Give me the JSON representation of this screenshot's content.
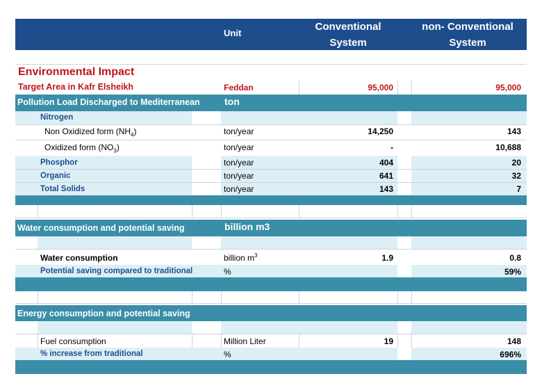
{
  "header": {
    "unit": "Unit",
    "conventional_line1": "Conventional",
    "conventional_line2": "System",
    "nonconventional_line1": "non- Conventional",
    "nonconventional_line2": "System"
  },
  "environmental": {
    "title": "Environmental Impact",
    "target_label": "Target Area  in Kafr Elsheikh",
    "target_unit": "Feddan",
    "target_conv": "95,000",
    "target_nonconv": "95,000"
  },
  "pollution": {
    "title": "Pollution Load Discharged to Mediterranean",
    "unit": "ton",
    "nitrogen_label": "Nitrogen",
    "rows": [
      {
        "label": "Non Oxidized form (NH",
        "sub": "4",
        "close": ")",
        "unit": "ton/year",
        "conv": "14,250",
        "nonconv": "143"
      },
      {
        "label": "Oxidized form (NO",
        "sub": "3",
        "close": ")",
        "unit": "ton/year",
        "conv": "-",
        "nonconv": "10,688"
      },
      {
        "label": "Phosphor",
        "unit": "ton/year",
        "conv": "404",
        "nonconv": "20"
      },
      {
        "label": "Organic",
        "unit": "ton/year",
        "conv": "641",
        "nonconv": "32"
      },
      {
        "label": "Total Solids",
        "unit": "ton/year",
        "conv": "143",
        "nonconv": "7"
      }
    ]
  },
  "water": {
    "title": "Water consumption and potential saving",
    "unit": "billion m3",
    "consumption_label": "Water consumption",
    "consumption_unit": "billion m",
    "consumption_unit_sup": "3",
    "consumption_conv": "1.9",
    "consumption_nonconv": "0.8",
    "saving_label": "Potential saving compared to traditional",
    "saving_unit": "%",
    "saving_nonconv": "59%"
  },
  "energy": {
    "title": "Energy consumption and potential saving",
    "fuel_label": "Fuel consumption",
    "fuel_unit": "Million Liter",
    "fuel_conv": "19",
    "fuel_nonconv": "148",
    "increase_label": "% increase from traditional",
    "increase_unit": "%",
    "increase_nonconv": "696%"
  }
}
